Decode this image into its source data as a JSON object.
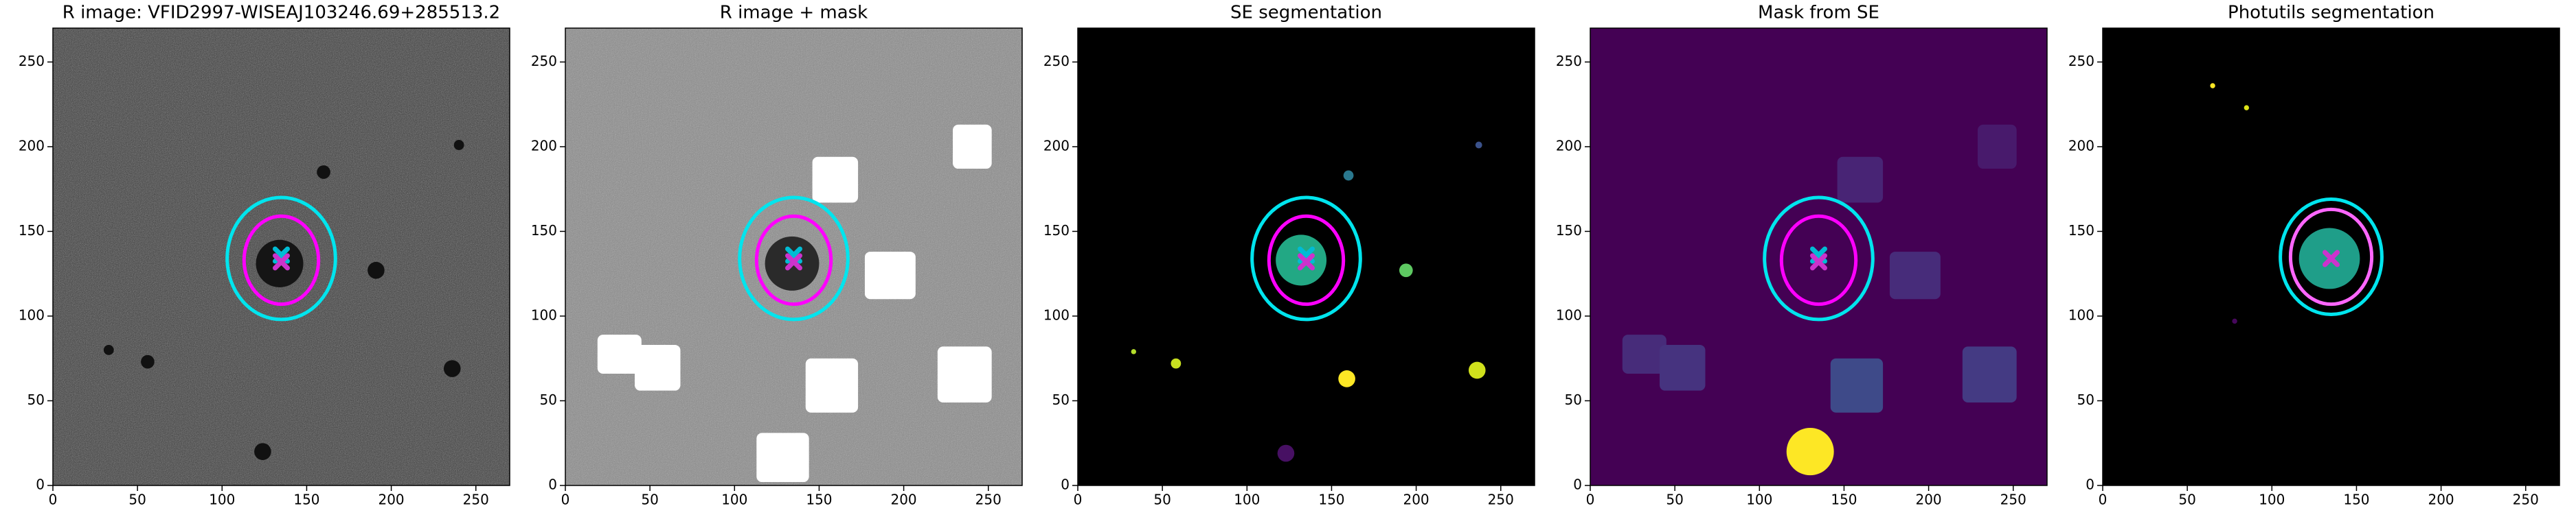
{
  "chart_data": [
    {
      "type": "image",
      "title": "R image: VFID2997-WISEAJ103246.69+285513.2",
      "background": "#3c3c3c",
      "noise": true,
      "xlim": [
        0,
        270
      ],
      "ylim": [
        0,
        270
      ],
      "xticks": [
        0,
        50,
        100,
        150,
        200,
        250
      ],
      "yticks": [
        0,
        50,
        100,
        150,
        200,
        250
      ],
      "blobs": [
        {
          "x": 134,
          "y": 131,
          "r": 14,
          "color": "#151515"
        },
        {
          "x": 191,
          "y": 127,
          "r": 5,
          "color": "#111111"
        },
        {
          "x": 160,
          "y": 185,
          "r": 4,
          "color": "#111111"
        },
        {
          "x": 236,
          "y": 69,
          "r": 5,
          "color": "#111111"
        },
        {
          "x": 124,
          "y": 20,
          "r": 5,
          "color": "#111111"
        },
        {
          "x": 56,
          "y": 73,
          "r": 4,
          "color": "#111111"
        },
        {
          "x": 240,
          "y": 201,
          "r": 3,
          "color": "#111111"
        },
        {
          "x": 33,
          "y": 80,
          "r": 3,
          "color": "#111111"
        }
      ],
      "masks": [],
      "ellipses": [
        {
          "x": 135,
          "y": 134,
          "rx": 32,
          "ry": 36,
          "color": "#00e5ee"
        },
        {
          "x": 135,
          "y": 133,
          "rx": 22,
          "ry": 26,
          "color": "#ff00ff"
        }
      ],
      "markers": [
        {
          "x": 135,
          "y": 136,
          "color": "#00bcd4"
        },
        {
          "x": 135,
          "y": 132,
          "color": "#cc33cc"
        }
      ]
    },
    {
      "type": "image",
      "title": "R image + mask",
      "background": "#8a8a8a",
      "noise": true,
      "xlim": [
        0,
        270
      ],
      "ylim": [
        0,
        270
      ],
      "xticks": [
        0,
        50,
        100,
        150,
        200,
        250
      ],
      "yticks": [
        0,
        50,
        100,
        150,
        200,
        250
      ],
      "blobs": [
        {
          "x": 134,
          "y": 131,
          "r": 16,
          "color": "#2a2a2a"
        }
      ],
      "masks": [
        {
          "x0": 146,
          "y0": 167,
          "x1": 173,
          "y1": 194,
          "color": "#ffffff"
        },
        {
          "x0": 177,
          "y0": 110,
          "x1": 207,
          "y1": 138,
          "color": "#ffffff"
        },
        {
          "x0": 229,
          "y0": 187,
          "x1": 252,
          "y1": 213,
          "color": "#ffffff"
        },
        {
          "x0": 19,
          "y0": 66,
          "x1": 45,
          "y1": 89,
          "color": "#ffffff"
        },
        {
          "x0": 41,
          "y0": 56,
          "x1": 68,
          "y1": 83,
          "color": "#ffffff"
        },
        {
          "x0": 142,
          "y0": 43,
          "x1": 173,
          "y1": 75,
          "color": "#ffffff"
        },
        {
          "x0": 113,
          "y0": 2,
          "x1": 144,
          "y1": 31,
          "color": "#ffffff"
        },
        {
          "x0": 220,
          "y0": 49,
          "x1": 252,
          "y1": 82,
          "color": "#ffffff"
        }
      ],
      "ellipses": [
        {
          "x": 135,
          "y": 134,
          "rx": 32,
          "ry": 36,
          "color": "#00e5ee"
        },
        {
          "x": 135,
          "y": 133,
          "rx": 22,
          "ry": 26,
          "color": "#ff00ff"
        }
      ],
      "markers": [
        {
          "x": 135,
          "y": 136,
          "color": "#00bcd4"
        },
        {
          "x": 135,
          "y": 132,
          "color": "#cc33cc"
        }
      ]
    },
    {
      "type": "image",
      "title": "SE segmentation",
      "background": "#000000",
      "noise": false,
      "xlim": [
        0,
        270
      ],
      "ylim": [
        0,
        270
      ],
      "xticks": [
        0,
        50,
        100,
        150,
        200,
        250
      ],
      "yticks": [
        0,
        50,
        100,
        150,
        200,
        250
      ],
      "blobs": [
        {
          "x": 132,
          "y": 133,
          "r": 15,
          "color": "#22a884"
        },
        {
          "x": 194,
          "y": 127,
          "r": 4,
          "color": "#5ec962"
        },
        {
          "x": 159,
          "y": 63,
          "r": 5,
          "color": "#fde725"
        },
        {
          "x": 236,
          "y": 68,
          "r": 5,
          "color": "#d0e11c"
        },
        {
          "x": 123,
          "y": 19,
          "r": 5,
          "color": "#471063"
        },
        {
          "x": 160,
          "y": 183,
          "r": 3,
          "color": "#2a788e"
        },
        {
          "x": 237,
          "y": 201,
          "r": 2,
          "color": "#3b528b"
        },
        {
          "x": 58,
          "y": 72,
          "r": 3,
          "color": "#c8e020"
        },
        {
          "x": 33,
          "y": 79,
          "r": 1.5,
          "color": "#b5de2b"
        }
      ],
      "masks": [],
      "ellipses": [
        {
          "x": 135,
          "y": 134,
          "rx": 32,
          "ry": 36,
          "color": "#00e5ee"
        },
        {
          "x": 135,
          "y": 133,
          "rx": 22,
          "ry": 26,
          "color": "#ff00ff"
        }
      ],
      "markers": [
        {
          "x": 135,
          "y": 136,
          "color": "#00bcd4"
        },
        {
          "x": 135,
          "y": 132,
          "color": "#cc33cc"
        }
      ]
    },
    {
      "type": "image",
      "title": "Mask from SE",
      "background": "#440154",
      "noise": false,
      "xlim": [
        0,
        270
      ],
      "ylim": [
        0,
        270
      ],
      "xticks": [
        0,
        50,
        100,
        150,
        200,
        250
      ],
      "yticks": [
        0,
        50,
        100,
        150,
        200,
        250
      ],
      "blobs": [
        {
          "x": 130,
          "y": 20,
          "r": 14,
          "color": "#fde725"
        }
      ],
      "masks": [
        {
          "x0": 146,
          "y0": 167,
          "x1": 173,
          "y1": 194,
          "color": "#482475"
        },
        {
          "x0": 177,
          "y0": 110,
          "x1": 207,
          "y1": 138,
          "color": "#472c7a"
        },
        {
          "x0": 229,
          "y0": 187,
          "x1": 252,
          "y1": 213,
          "color": "#481a6c"
        },
        {
          "x0": 19,
          "y0": 66,
          "x1": 45,
          "y1": 89,
          "color": "#472c7a"
        },
        {
          "x0": 41,
          "y0": 56,
          "x1": 68,
          "y1": 83,
          "color": "#46337f"
        },
        {
          "x0": 142,
          "y0": 43,
          "x1": 173,
          "y1": 75,
          "color": "#3e4a89"
        },
        {
          "x0": 220,
          "y0": 49,
          "x1": 252,
          "y1": 82,
          "color": "#443a83"
        }
      ],
      "ellipses": [
        {
          "x": 135,
          "y": 134,
          "rx": 32,
          "ry": 36,
          "color": "#00e5ee"
        },
        {
          "x": 135,
          "y": 133,
          "rx": 22,
          "ry": 26,
          "color": "#ff00ff"
        }
      ],
      "markers": [
        {
          "x": 135,
          "y": 136,
          "color": "#00bcd4"
        },
        {
          "x": 135,
          "y": 132,
          "color": "#cc33cc"
        }
      ]
    },
    {
      "type": "image",
      "title": "Photutils segmentation",
      "background": "#000000",
      "noise": false,
      "xlim": [
        0,
        270
      ],
      "ylim": [
        0,
        270
      ],
      "xticks": [
        0,
        50,
        100,
        150,
        200,
        250
      ],
      "yticks": [
        0,
        50,
        100,
        150,
        200,
        250
      ],
      "blobs": [
        {
          "x": 134,
          "y": 134,
          "r": 18,
          "color": "#1f9e89"
        },
        {
          "x": 65,
          "y": 236,
          "r": 1.5,
          "color": "#fde725"
        },
        {
          "x": 85,
          "y": 223,
          "r": 1.5,
          "color": "#dde318"
        },
        {
          "x": 78,
          "y": 97,
          "r": 1.5,
          "color": "#46085c"
        }
      ],
      "masks": [],
      "ellipses": [
        {
          "x": 135,
          "y": 135,
          "rx": 30,
          "ry": 34,
          "color": "#00e5ee"
        },
        {
          "x": 135,
          "y": 135,
          "rx": 24,
          "ry": 28,
          "color": "#ff66ff"
        }
      ],
      "markers": [
        {
          "x": 135,
          "y": 134,
          "color": "#cc33cc"
        }
      ]
    }
  ]
}
